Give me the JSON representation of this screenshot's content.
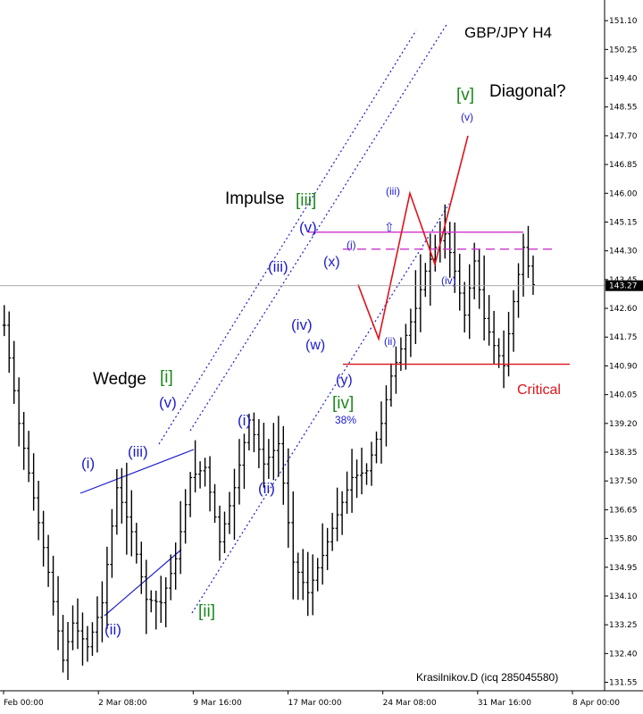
{
  "chart_data": {
    "type": "ohlc",
    "title": "GBP/JPY H4",
    "watermark": "Krasilnikov.D (icq 285045580)",
    "y_axis": {
      "ticks": [
        "151.10",
        "150.25",
        "149.40",
        "148.55",
        "147.70",
        "146.85",
        "146.00",
        "145.15",
        "144.30",
        "143.45",
        "142.60",
        "141.75",
        "140.90",
        "140.05",
        "139.20",
        "138.35",
        "137.50",
        "136.65",
        "135.80",
        "134.95",
        "134.10",
        "133.25",
        "132.40",
        "131.55"
      ],
      "range": [
        131.3,
        151.5
      ],
      "current_price": "143.27",
      "current_price_value": 143.27
    },
    "x_axis": {
      "ticks": [
        "Feb 00:00",
        "2 Mar 08:00",
        "9 Mar 16:00",
        "17 Mar 00:00",
        "24 Mar 08:00",
        "31 Mar 16:00",
        "8 Apr 00:00"
      ],
      "bar_count": 122
    },
    "price_path": [
      [
        0,
        142.1
      ],
      [
        3,
        139.2
      ],
      [
        6,
        137.0
      ],
      [
        9,
        134.8
      ],
      [
        12,
        132.2
      ],
      [
        14,
        133.3
      ],
      [
        17,
        132.6
      ],
      [
        20,
        133.9
      ],
      [
        23,
        137.3
      ],
      [
        26,
        136.0
      ],
      [
        29,
        134.0
      ],
      [
        32,
        133.9
      ],
      [
        35,
        135.2
      ],
      [
        38,
        137.6
      ],
      [
        41,
        137.9
      ],
      [
        44,
        135.7
      ],
      [
        47,
        137.3
      ],
      [
        50,
        139.3
      ],
      [
        53,
        138.0
      ],
      [
        56,
        138.6
      ],
      [
        59,
        135.1
      ],
      [
        62,
        134.2
      ],
      [
        65,
        135.3
      ],
      [
        68,
        136.5
      ],
      [
        71,
        137.6
      ],
      [
        74,
        137.8
      ],
      [
        77,
        139.2
      ],
      [
        79,
        140.6
      ],
      [
        82,
        141.8
      ],
      [
        84,
        142.6
      ],
      [
        86,
        143.7
      ],
      [
        88,
        144.4
      ],
      [
        90,
        144.8
      ],
      [
        92,
        143.7
      ],
      [
        94,
        142.4
      ],
      [
        96,
        144.0
      ],
      [
        98,
        142.3
      ],
      [
        100,
        141.5
      ],
      [
        102,
        140.9
      ],
      [
        104,
        142.8
      ],
      [
        106,
        144.4
      ],
      [
        108,
        143.3
      ]
    ],
    "levels": [
      {
        "name": "upper-resistance",
        "value": 144.85,
        "style": "solid",
        "color": "#cc33cc"
      },
      {
        "name": "resistance-dashed",
        "value": 144.35,
        "style": "dashed",
        "color": "#cc33cc"
      },
      {
        "name": "critical",
        "value": 140.95,
        "style": "solid",
        "color": "#e0121a",
        "label": "Critical"
      }
    ],
    "projection": [
      [
        108,
        143.3
      ],
      [
        116,
        141.7
      ],
      [
        127,
        146.0
      ],
      [
        134,
        143.9
      ],
      [
        143,
        147.7
      ]
    ],
    "labels": {
      "impulse": "Impulse",
      "diagonal": "Diagonal?",
      "wedge": "Wedge",
      "critical": "Critical",
      "fib": "38%",
      "arrow_up": "⇧",
      "waves_green": [
        "[i]",
        "[ii]",
        "[iii]",
        "[iv]",
        "[v]"
      ],
      "waves_blue_upper": [
        "(i)",
        "(ii)",
        "(iii)",
        "(iv)",
        "(v)"
      ],
      "waves_blue_mid": [
        "(i)",
        "(ii)",
        "(iii)",
        "(iv)",
        "(v)"
      ],
      "waves_wxy": [
        "(w)",
        "(x)",
        "(y)"
      ],
      "waves_proj": [
        "(i)",
        "(ii)",
        "(iii)",
        "(iv)",
        "(v)"
      ]
    },
    "colors": {
      "candles": "#000000",
      "channel": "#1c1ccf",
      "projection": "#e0121a",
      "wave_blue": "#1c1ccf",
      "wave_green": "#1a8a1a"
    }
  }
}
